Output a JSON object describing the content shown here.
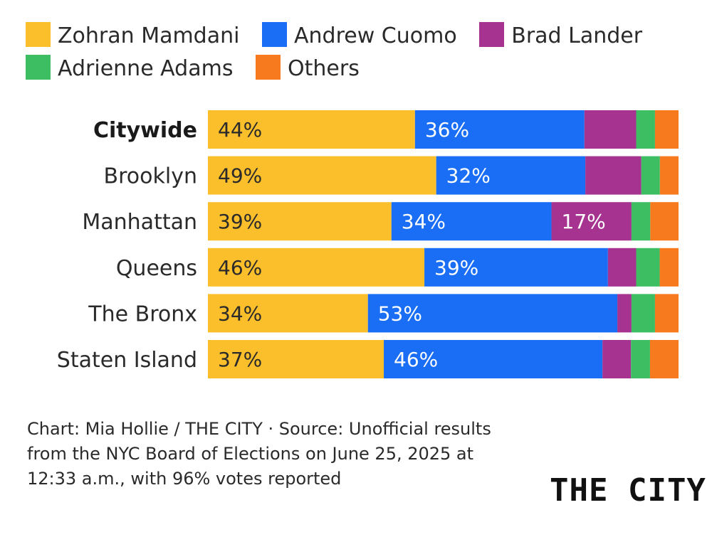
{
  "legend": [
    {
      "label": "Zohran Mamdani",
      "color": "#FBBF2C"
    },
    {
      "label": "Andrew Cuomo",
      "color": "#1A6EF5"
    },
    {
      "label": "Brad Lander",
      "color": "#A5338F"
    },
    {
      "label": "Adrienne Adams",
      "color": "#3DBE63"
    },
    {
      "label": "Others",
      "color": "#F77A1E"
    }
  ],
  "chart_data": {
    "type": "bar",
    "orientation": "horizontal",
    "stacked": true,
    "unit": "%",
    "categories": [
      "Citywide",
      "Brooklyn",
      "Manhattan",
      "Queens",
      "The Bronx",
      "Staten Island"
    ],
    "series": [
      {
        "name": "Zohran Mamdani",
        "values": [
          44,
          49,
          39,
          46,
          34,
          37
        ]
      },
      {
        "name": "Andrew Cuomo",
        "values": [
          36,
          32,
          34,
          39,
          53,
          46
        ]
      },
      {
        "name": "Brad Lander",
        "values": [
          11,
          12,
          17,
          6,
          3,
          6
        ]
      },
      {
        "name": "Adrienne Adams",
        "values": [
          4,
          4,
          4,
          5,
          5,
          4
        ]
      },
      {
        "name": "Others",
        "values": [
          5,
          4,
          6,
          4,
          5,
          6
        ]
      }
    ],
    "data_labels": [
      [
        "44%",
        "36%",
        "",
        "",
        ""
      ],
      [
        "49%",
        "32%",
        "",
        "",
        ""
      ],
      [
        "39%",
        "34%",
        "17%",
        "",
        ""
      ],
      [
        "46%",
        "39%",
        "",
        "",
        ""
      ],
      [
        "34%",
        "53%",
        "",
        "",
        ""
      ],
      [
        "37%",
        "46%",
        "",
        "",
        ""
      ]
    ],
    "bold_category": "Citywide",
    "xlim": [
      0,
      100
    ]
  },
  "footer": {
    "credit": "Chart: Mia Hollie / THE CITY · Source: Unofficial results from the NYC Board of Elections on June 25, 2025 at 12:33 a.m., with 96% votes reported"
  },
  "logo": "THE CITY"
}
